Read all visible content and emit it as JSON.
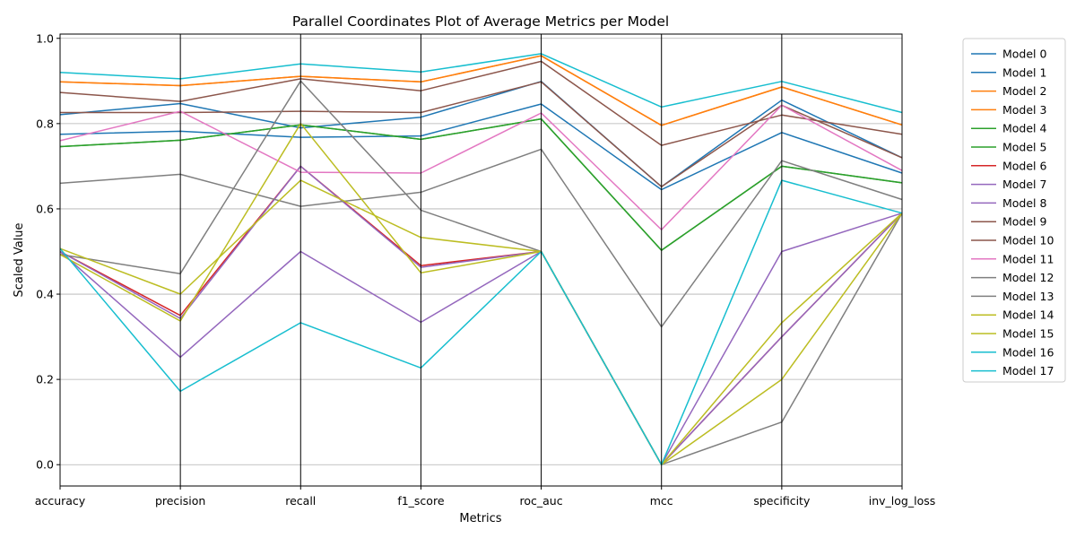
{
  "chart_data": {
    "type": "line",
    "subtype": "parallel-coordinates",
    "title": "Parallel Coordinates Plot of Average Metrics per Model",
    "xlabel": "Metrics",
    "ylabel": "Scaled Value",
    "ylim": [
      -0.05,
      1.01
    ],
    "yticks": [
      "0.0",
      "0.2",
      "0.4",
      "0.6",
      "0.8",
      "1.0"
    ],
    "grid": true,
    "legend_position": "top-right-outside",
    "categories": [
      "accuracy",
      "precision",
      "recall",
      "f1_score",
      "roc_auc",
      "mcc",
      "specificity",
      "inv_log_loss"
    ],
    "series": [
      {
        "name": "Model 0",
        "color": "#1f77b4",
        "values": [
          0.775,
          0.782,
          0.768,
          0.771,
          0.846,
          0.645,
          0.779,
          0.684
        ]
      },
      {
        "name": "Model 1",
        "color": "#1f77b4",
        "values": [
          0.821,
          0.847,
          0.79,
          0.815,
          0.899,
          0.652,
          0.855,
          0.72
        ]
      },
      {
        "name": "Model 2",
        "color": "#ff7f0e",
        "values": [
          0.898,
          0.889,
          0.911,
          0.898,
          0.959,
          0.796,
          0.886,
          0.797
        ]
      },
      {
        "name": "Model 3",
        "color": "#ff7f0e",
        "values": [
          0.898,
          0.889,
          0.911,
          0.898,
          0.959,
          0.796,
          0.886,
          0.797
        ]
      },
      {
        "name": "Model 4",
        "color": "#2ca02c",
        "values": [
          0.746,
          0.761,
          0.797,
          0.763,
          0.811,
          0.503,
          0.7,
          0.661
        ]
      },
      {
        "name": "Model 5",
        "color": "#2ca02c",
        "values": [
          0.746,
          0.761,
          0.797,
          0.763,
          0.811,
          0.503,
          0.7,
          0.661
        ]
      },
      {
        "name": "Model 6",
        "color": "#d62728",
        "values": [
          0.5,
          0.35,
          0.7,
          0.467,
          0.5,
          0.0,
          0.3,
          0.59
        ]
      },
      {
        "name": "Model 7",
        "color": "#9467bd",
        "values": [
          0.5,
          0.252,
          0.5,
          0.334,
          0.5,
          0.0,
          0.5,
          0.59
        ]
      },
      {
        "name": "Model 8",
        "color": "#9467bd",
        "values": [
          0.5,
          0.343,
          0.7,
          0.463,
          0.5,
          0.0,
          0.3,
          0.59
        ]
      },
      {
        "name": "Model 9",
        "color": "#8c564b",
        "values": [
          0.873,
          0.852,
          0.905,
          0.877,
          0.946,
          0.749,
          0.82,
          0.775
        ]
      },
      {
        "name": "Model 10",
        "color": "#8c564b",
        "values": [
          0.826,
          0.826,
          0.829,
          0.826,
          0.898,
          0.652,
          0.843,
          0.72
        ]
      },
      {
        "name": "Model 11",
        "color": "#e377c2",
        "values": [
          0.76,
          0.829,
          0.686,
          0.684,
          0.825,
          0.551,
          0.843,
          0.69
        ]
      },
      {
        "name": "Model 12",
        "color": "#7f7f7f",
        "values": [
          0.66,
          0.681,
          0.606,
          0.639,
          0.74,
          0.323,
          0.713,
          0.622
        ]
      },
      {
        "name": "Model 13",
        "color": "#7f7f7f",
        "values": [
          0.493,
          0.448,
          0.9,
          0.597,
          0.5,
          0.0,
          0.1,
          0.59
        ]
      },
      {
        "name": "Model 14",
        "color": "#bcbd22",
        "values": [
          0.507,
          0.4,
          0.667,
          0.533,
          0.5,
          0.0,
          0.333,
          0.59
        ]
      },
      {
        "name": "Model 15",
        "color": "#bcbd22",
        "values": [
          0.493,
          0.337,
          0.8,
          0.45,
          0.5,
          0.0,
          0.2,
          0.59
        ]
      },
      {
        "name": "Model 16",
        "color": "#17becf",
        "values": [
          0.507,
          0.172,
          0.333,
          0.227,
          0.5,
          0.0,
          0.667,
          0.59
        ]
      },
      {
        "name": "Model 17",
        "color": "#17becf",
        "values": [
          0.92,
          0.905,
          0.94,
          0.921,
          0.964,
          0.839,
          0.899,
          0.826
        ]
      }
    ]
  }
}
